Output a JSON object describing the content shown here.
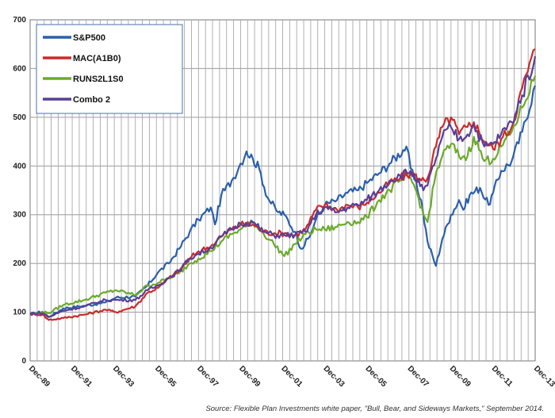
{
  "source_note": "Source: Flexible Plan Investments white paper, \"Bull, Bear, and Sideways Markets,\" September 2014.",
  "chart_data": {
    "type": "line",
    "title": "",
    "xlabel": "",
    "ylabel": "",
    "ylim": [
      0,
      700
    ],
    "xlim": [
      1989.917,
      2013.917
    ],
    "yticks": [
      "0",
      "100",
      "200",
      "300",
      "400",
      "500",
      "600",
      "700"
    ],
    "xticks": [
      "Dec-89",
      "Dec-91",
      "Dec-93",
      "Dec-95",
      "Dec-97",
      "Dec-99",
      "Dec-01",
      "Dec-03",
      "Dec-05",
      "Dec-07",
      "Dec-09",
      "Dec-11",
      "Dec-13"
    ],
    "grid": true,
    "legend_position": "top-left",
    "series": [
      {
        "name": "S&P500",
        "color": "#2a5fac",
        "x": [
          1989.917,
          1990.5,
          1990.8,
          1991.5,
          1992.5,
          1993.5,
          1994.0,
          1994.917,
          1995.5,
          1996.0,
          1996.5,
          1997.0,
          1997.5,
          1997.917,
          1998.5,
          1998.7,
          1999.0,
          1999.5,
          1999.917,
          2000.2,
          2000.5,
          2000.8,
          2001.2,
          2001.7,
          2002.0,
          2002.5,
          2002.8,
          2003.2,
          2003.5,
          2003.917,
          2004.5,
          2005.0,
          2005.5,
          2005.917,
          2006.5,
          2007.0,
          2007.8,
          2008.0,
          2008.5,
          2008.8,
          2009.2,
          2009.5,
          2009.917,
          2010.3,
          2010.5,
          2010.8,
          2011.3,
          2011.7,
          2011.917,
          2012.3,
          2012.8,
          2013.3,
          2013.917
        ],
        "values": [
          96,
          101,
          90,
          108,
          113,
          120,
          130,
          132,
          155,
          182,
          200,
          230,
          265,
          290,
          315,
          280,
          340,
          370,
          405,
          430,
          415,
          395,
          335,
          305,
          300,
          265,
          230,
          255,
          290,
          320,
          330,
          345,
          350,
          365,
          385,
          405,
          440,
          395,
          330,
          245,
          195,
          250,
          300,
          330,
          310,
          340,
          355,
          320,
          345,
          390,
          410,
          470,
          565
        ]
      },
      {
        "name": "MAC(A1B0)",
        "color": "#cc2a2a",
        "x": [
          1989.917,
          1990.5,
          1990.8,
          1991.5,
          1992.5,
          1993.5,
          1994.0,
          1994.917,
          1995.5,
          1996.0,
          1996.5,
          1997.0,
          1997.5,
          1997.917,
          1998.5,
          1999.0,
          1999.5,
          1999.917,
          2000.5,
          2001.0,
          2001.5,
          2002.0,
          2002.5,
          2003.0,
          2003.5,
          2003.917,
          2004.5,
          2005.0,
          2005.5,
          2005.917,
          2006.5,
          2007.0,
          2007.5,
          2008.0,
          2008.5,
          2008.8,
          2009.2,
          2009.5,
          2009.917,
          2010.3,
          2010.7,
          2011.0,
          2011.5,
          2011.917,
          2012.3,
          2012.8,
          2013.3,
          2013.917
        ],
        "values": [
          96,
          95,
          84,
          88,
          95,
          105,
          100,
          112,
          140,
          150,
          170,
          185,
          210,
          225,
          235,
          255,
          270,
          280,
          280,
          265,
          262,
          262,
          258,
          270,
          310,
          320,
          310,
          320,
          315,
          325,
          345,
          365,
          375,
          385,
          370,
          375,
          440,
          480,
          500,
          465,
          480,
          490,
          450,
          435,
          455,
          480,
          560,
          640
        ]
      },
      {
        "name": "RUNS2L1S0",
        "color": "#6aab2a",
        "x": [
          1989.917,
          1990.5,
          1990.8,
          1991.5,
          1992.5,
          1993.5,
          1994.0,
          1994.917,
          1995.5,
          1996.0,
          1996.5,
          1997.0,
          1997.5,
          1997.917,
          1998.5,
          1999.0,
          1999.5,
          1999.917,
          2000.5,
          2001.0,
          2001.5,
          2002.0,
          2002.5,
          2003.0,
          2003.5,
          2003.917,
          2004.5,
          2005.0,
          2005.5,
          2005.917,
          2006.5,
          2007.0,
          2007.5,
          2008.0,
          2008.3,
          2008.6,
          2008.8,
          2009.2,
          2009.5,
          2009.917,
          2010.3,
          2010.7,
          2011.0,
          2011.5,
          2011.917,
          2012.3,
          2012.8,
          2013.3,
          2013.917
        ],
        "values": [
          95,
          100,
          98,
          115,
          125,
          140,
          145,
          135,
          155,
          160,
          170,
          180,
          200,
          210,
          225,
          245,
          260,
          270,
          285,
          262,
          240,
          215,
          240,
          260,
          270,
          270,
          275,
          285,
          285,
          295,
          330,
          350,
          370,
          375,
          345,
          300,
          285,
          385,
          420,
          445,
          420,
          420,
          460,
          410,
          415,
          440,
          470,
          520,
          585
        ]
      },
      {
        "name": "Combo 2",
        "color": "#5a3e96",
        "x": [
          1989.917,
          1990.5,
          1990.8,
          1991.5,
          1992.5,
          1993.5,
          1994.0,
          1994.917,
          1995.5,
          1996.0,
          1996.5,
          1997.0,
          1997.5,
          1997.917,
          1998.5,
          1999.0,
          1999.5,
          1999.917,
          2000.5,
          2001.0,
          2001.5,
          2002.0,
          2002.5,
          2003.0,
          2003.5,
          2003.917,
          2004.5,
          2005.0,
          2005.5,
          2005.917,
          2006.5,
          2007.0,
          2007.5,
          2008.0,
          2008.3,
          2008.6,
          2008.8,
          2009.2,
          2009.5,
          2009.917,
          2010.3,
          2010.7,
          2011.0,
          2011.5,
          2011.917,
          2012.3,
          2012.8,
          2013.3,
          2013.917
        ],
        "values": [
          96,
          98,
          90,
          103,
          112,
          125,
          125,
          125,
          145,
          155,
          170,
          185,
          210,
          220,
          232,
          255,
          270,
          282,
          285,
          265,
          258,
          258,
          258,
          265,
          300,
          315,
          305,
          315,
          320,
          330,
          350,
          370,
          380,
          390,
          370,
          350,
          360,
          415,
          460,
          480,
          455,
          465,
          485,
          440,
          445,
          465,
          490,
          545,
          625
        ]
      }
    ]
  }
}
